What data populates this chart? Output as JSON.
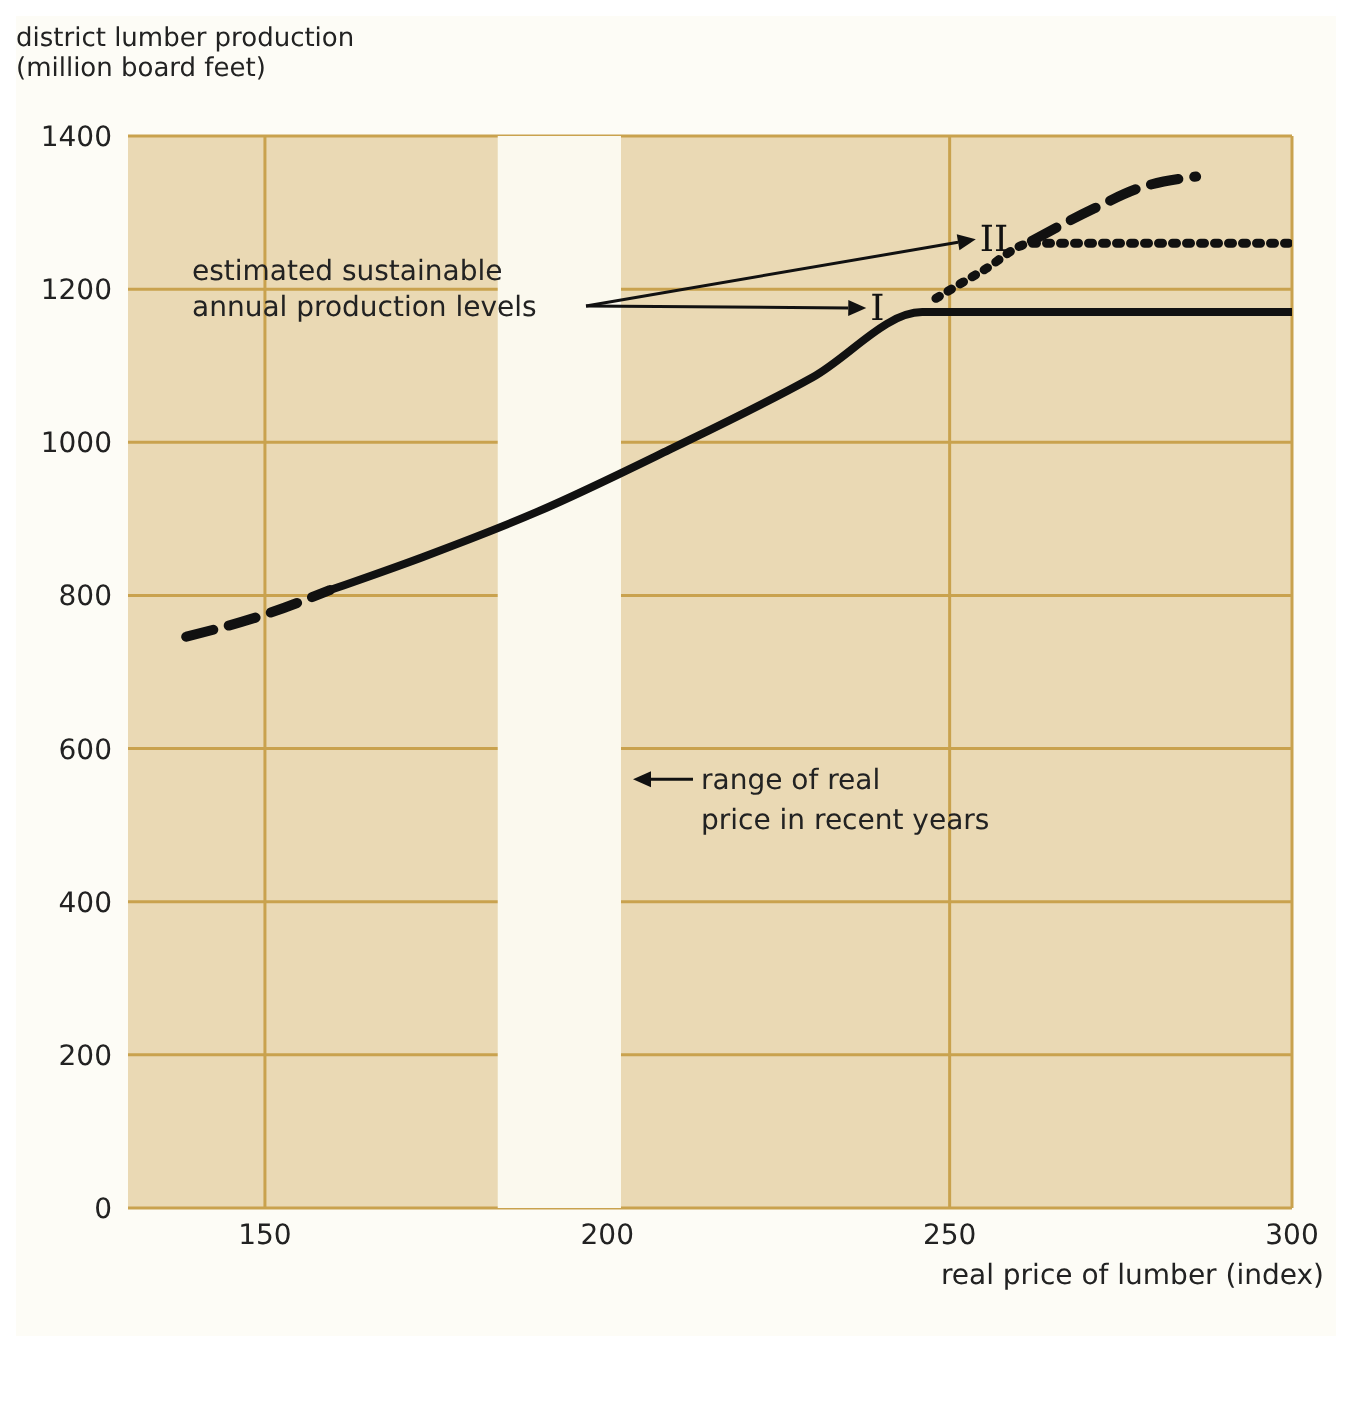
{
  "chart_data": {
    "type": "line",
    "ylabel": "district lumber production\n(million board feet)",
    "xlabel": "real price of lumber (index)",
    "xlim": [
      130,
      300
    ],
    "xticks": [
      150,
      200,
      250,
      300
    ],
    "ylim": [
      0,
      1400
    ],
    "yticks": [
      0,
      200,
      400,
      600,
      800,
      1000,
      1200,
      1400
    ],
    "grid": true,
    "legend": "top right",
    "marker": "none",
    "series": [
      {
        "color": "#111111",
        "line_style": "dashed",
        "x": [
          138.5,
          150,
          159.5
        ],
        "values": [
          746,
          775,
          807
        ]
      },
      {
        "name": "I",
        "color": "#111111",
        "line_style": "solid",
        "x": [
          159.5,
          173,
          190,
          209,
          230,
          246,
          300
        ],
        "values": [
          807,
          850,
          910,
          990,
          1085,
          1170,
          1170
        ]
      },
      {
        "name": "II",
        "color": "#111111",
        "line_style": "dotted",
        "x": [
          248,
          255,
          262,
          300
        ],
        "values": [
          1188,
          1225,
          1260,
          1260
        ]
      },
      {
        "color": "#111111",
        "line_style": "dashed",
        "x": [
          262,
          271,
          278,
          286
        ],
        "values": [
          1263,
          1305,
          1333,
          1347
        ]
      }
    ],
    "bands": [
      {
        "axis": "x",
        "from": 184,
        "to": 202,
        "label": "range of real\nprice in recent years",
        "color": "#fbf9ee"
      }
    ],
    "annotations": [
      "estimated sustainable\nannual production levels"
    ]
  }
}
